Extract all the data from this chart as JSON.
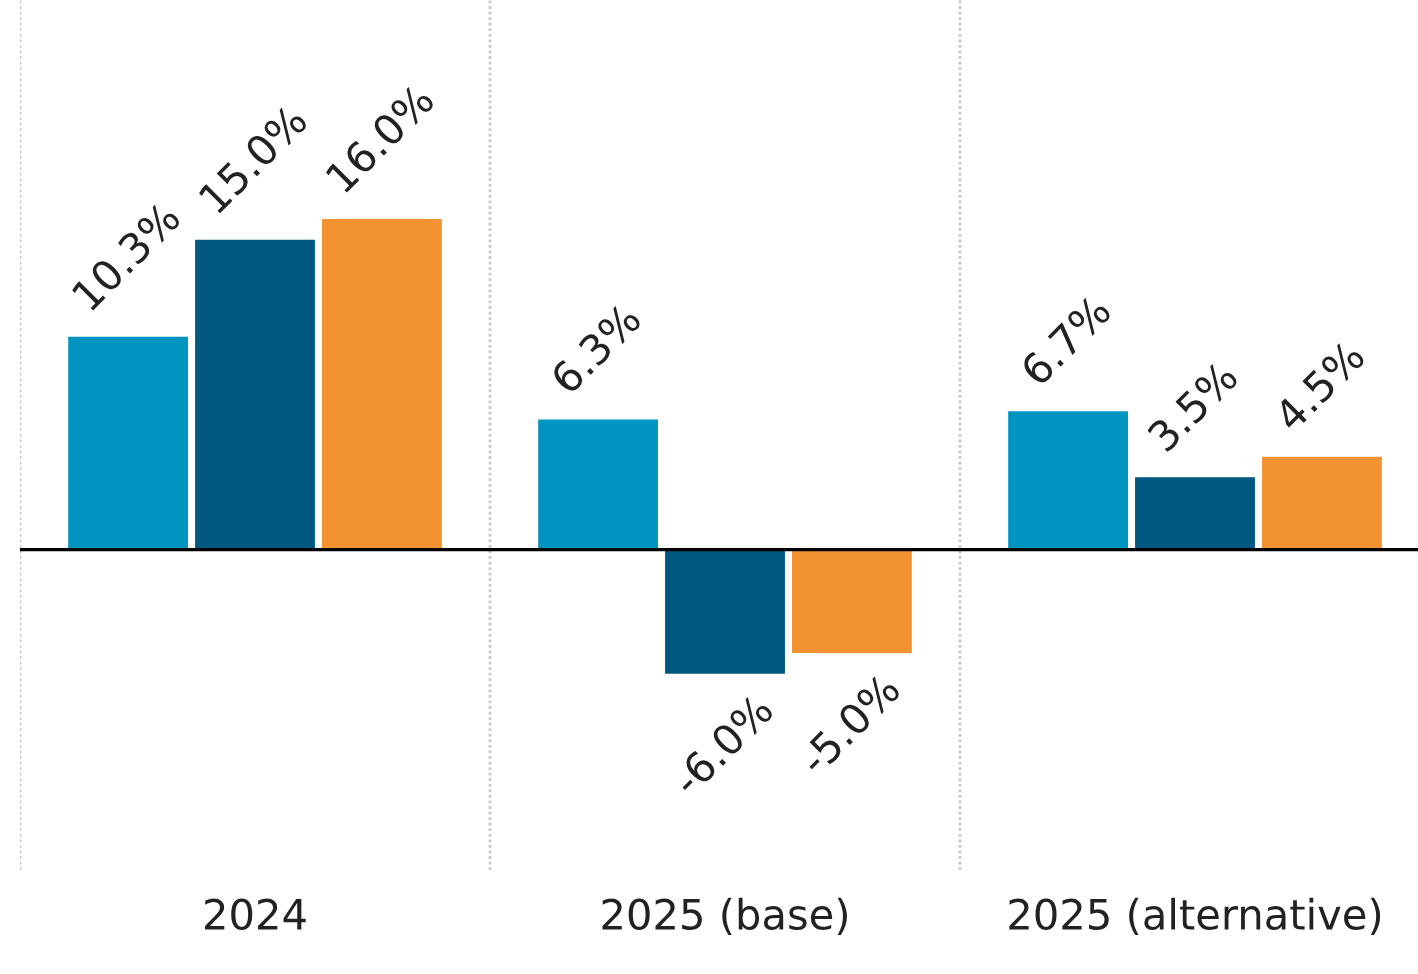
{
  "chart_data": {
    "type": "bar",
    "categories": [
      "2024",
      "2025 (base)",
      "2025 (alternative)"
    ],
    "series": [
      {
        "color": "#0094c1",
        "values": [
          10.3,
          6.3,
          6.7
        ],
        "value_labels": [
          "10.3%",
          "6.3%",
          "6.7%"
        ]
      },
      {
        "color": "#00577f",
        "values": [
          15.0,
          -6.0,
          3.5
        ],
        "value_labels": [
          "15.0%",
          "-6.0%",
          "3.5%"
        ]
      },
      {
        "color": "#f39231",
        "values": [
          16.0,
          -5.0,
          4.5
        ],
        "value_labels": [
          "16.0%",
          "-5.0%",
          "4.5%"
        ]
      }
    ],
    "ylim": [
      -15.5,
      26.6
    ],
    "grid": "x",
    "tick_labels": "x"
  }
}
